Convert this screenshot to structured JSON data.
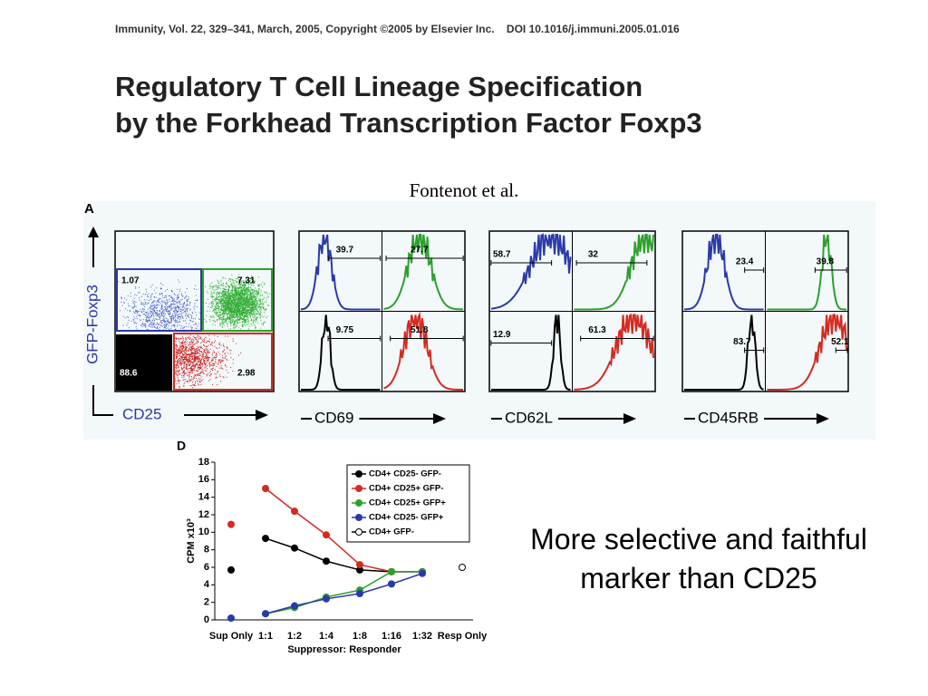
{
  "header": {
    "citation": "Immunity, Vol. 22, 329–341, March, 2005, Copyright ©2005 by Elsevier Inc.    DOI 10.1016/j.immuni.2005.01.016",
    "title_lines": [
      "Regulatory T Cell Lineage Specification",
      "by the Forkhead Transcription Factor Foxp3"
    ],
    "author": "Fontenot et al."
  },
  "panel_a": {
    "label": "A",
    "y_axis": "GFP-Foxp3",
    "x_axis": "CD25",
    "gates": [
      "1.07",
      "7.31",
      "88.6",
      "2.98"
    ],
    "histograms": [
      {
        "marker": "CD69",
        "gates": [
          "39.7",
          "27.7",
          "9.75",
          "51.8"
        ]
      },
      {
        "marker": "CD62L",
        "gates": [
          "58.7",
          "32",
          "12.9",
          "61.3"
        ]
      },
      {
        "marker": "CD45RB",
        "gates": [
          "23.4",
          "39.8",
          "83.7",
          "52.1"
        ]
      }
    ]
  },
  "chart_data": {
    "type": "line",
    "label": "D",
    "y_label": "CPM x10³",
    "x_label": "Suppressor: Responder",
    "categories": [
      "Sup Only",
      "1:1",
      "1:2",
      "1:4",
      "1:8",
      "1:16",
      "1:32",
      "Resp Only"
    ],
    "series": [
      {
        "name": "CD4+ CD25- GFP-",
        "color": "#000000",
        "values": [
          5.7,
          9.3,
          8.2,
          6.7,
          5.7,
          5.5,
          5.5,
          null
        ]
      },
      {
        "name": "CD4+ CD25+ GFP-",
        "color": "#d42a20",
        "values": [
          10.9,
          15.0,
          12.4,
          9.7,
          6.3,
          5.5,
          5.5,
          null
        ]
      },
      {
        "name": "CD4+ CD25+ GFP+",
        "color": "#2ca02c",
        "values": [
          0.2,
          0.7,
          1.4,
          2.6,
          3.4,
          5.5,
          5.5,
          null
        ]
      },
      {
        "name": "CD4+ CD25- GFP+",
        "color": "#2a3aa8",
        "values": [
          0.2,
          0.7,
          1.6,
          2.4,
          3.0,
          4.1,
          5.3,
          null
        ]
      },
      {
        "name": "CD4+ GFP-",
        "color": "#000000",
        "hollow": true,
        "values": [
          null,
          null,
          null,
          null,
          null,
          null,
          null,
          6.0
        ]
      }
    ],
    "ylim": [
      0,
      18
    ],
    "yticks": [
      0,
      2,
      4,
      6,
      8,
      10,
      12,
      14,
      16,
      18
    ]
  },
  "caption": [
    "More selective and faithful",
    "marker than CD25"
  ]
}
